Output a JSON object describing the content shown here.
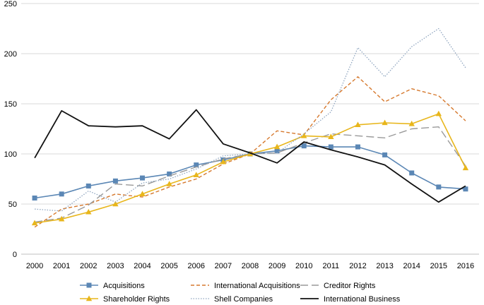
{
  "chart_data": {
    "type": "line",
    "title": "",
    "xlabel": "",
    "ylabel": "",
    "ylim": [
      0,
      250
    ],
    "yticks": [
      "0",
      "50",
      "100",
      "150",
      "200",
      "250"
    ],
    "grid": "horizontal",
    "legend_position": "bottom",
    "x": [
      "2000",
      "2001",
      "2002",
      "2003",
      "2004",
      "2005",
      "2006",
      "2007",
      "2008",
      "2009",
      "2010",
      "2011",
      "2012",
      "2013",
      "2014",
      "2015",
      "2016"
    ],
    "series": [
      {
        "name": "Acquisitions",
        "color": "#5b87b5",
        "dash": "solid",
        "marker": "square",
        "values": [
          56,
          60,
          68,
          73,
          76,
          80,
          89,
          94,
          100,
          103,
          108,
          107,
          107,
          99,
          81,
          67,
          65
        ]
      },
      {
        "name": "International Acquisitions",
        "color": "#d6792e",
        "dash": "dashed",
        "marker": "none",
        "values": [
          27,
          45,
          50,
          60,
          57,
          67,
          75,
          90,
          100,
          123,
          119,
          154,
          177,
          152,
          165,
          158,
          133
        ]
      },
      {
        "name": "Creditor Rights",
        "color": "#9a9a9a",
        "dash": "longdash",
        "marker": "none",
        "values": [
          32,
          36,
          49,
          70,
          68,
          78,
          87,
          95,
          100,
          101,
          111,
          120,
          118,
          116,
          125,
          127,
          88
        ]
      },
      {
        "name": "Shareholder Rights",
        "color": "#e8b61c",
        "dash": "solid",
        "marker": "triangle",
        "values": [
          31,
          35,
          42,
          50,
          60,
          70,
          79,
          92,
          100,
          107,
          118,
          117,
          129,
          131,
          130,
          140,
          86
        ]
      },
      {
        "name": "Shell Companies",
        "color": "#8fa5bf",
        "dash": "dotted",
        "marker": "none",
        "values": [
          45,
          43,
          63,
          52,
          71,
          75,
          85,
          98,
          100,
          101,
          120,
          142,
          206,
          177,
          207,
          225,
          186
        ]
      },
      {
        "name": "International Business",
        "color": "#111111",
        "dash": "solid",
        "marker": "none",
        "values": [
          96,
          143,
          128,
          127,
          128,
          115,
          144,
          110,
          101,
          91,
          112,
          104,
          97,
          89,
          70,
          52,
          68
        ]
      }
    ]
  }
}
